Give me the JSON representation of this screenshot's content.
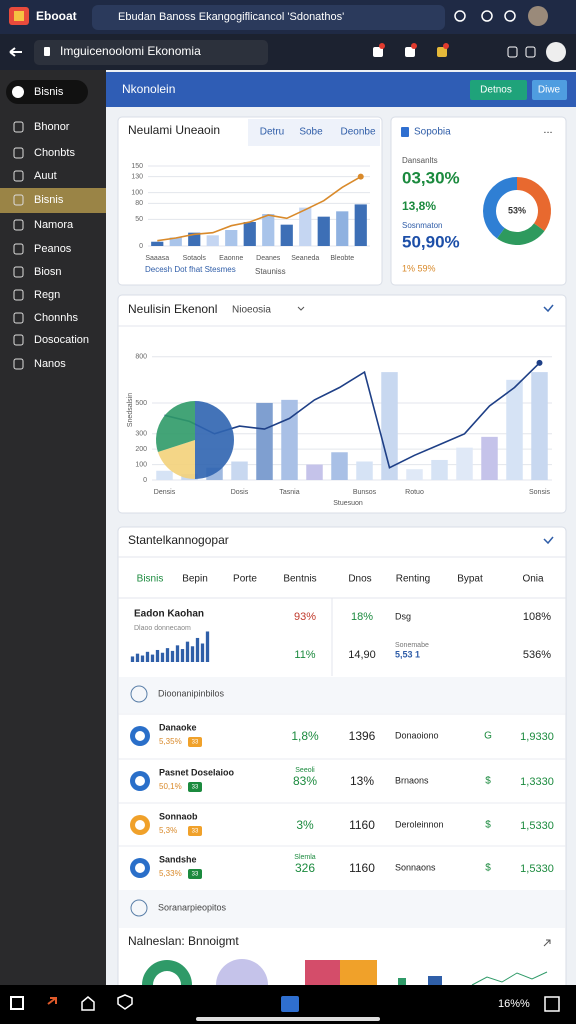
{
  "browser": {
    "app": "Ebooat",
    "tab": "Ebudan Banoss Ekangogiflicancol 'Sdonathos'",
    "address": "Imguicenoolomi Ekonomia"
  },
  "sidebar": {
    "top": "Bisnis",
    "items": [
      "Bhonor",
      "Chonbts",
      "Auut",
      "Bisnis",
      "Namora",
      "Peanos",
      "Biosn",
      "Regn",
      "Chonnhs",
      "Dosocation",
      "Nanos"
    ],
    "active": 3
  },
  "header": {
    "title": "Nkonolein",
    "buttons": [
      "Detnos",
      "Diwe"
    ]
  },
  "card1": {
    "tabs": [
      "Detru",
      "Sobe",
      "Deonbe"
    ]
  },
  "card2": {
    "title": "Sopobia",
    "menu": "...",
    "stats": [
      "Dansanlts",
      "03,30%",
      "13,8%",
      "Sosnmaton",
      "50,90%",
      "1% 59%"
    ]
  },
  "card3": {
    "subtitle": "Nioeosia"
  },
  "table": {
    "title": "Stantelkannogopar",
    "headers": [
      "Bisnis",
      "Bepin",
      "Porte",
      "Bentnis",
      "Dnos",
      "Renting",
      "Bypat",
      "Onia"
    ],
    "summary": {
      "rows": [
        [
          "93%",
          "18%",
          "Dsg",
          "108%"
        ],
        [
          "11%",
          "14,90",
          "5,53 1",
          "536%"
        ]
      ],
      "note": "Sonemabe"
    },
    "section": "Dioonanipinbilos",
    "rows": [
      {
        "name": "Danaoke",
        "sub": "5,35%",
        "badge": "33",
        "v1": "1,8%",
        "v2": "1396",
        "v3": "Donaoiono",
        "cur": "G",
        "v4": "1,9330"
      },
      {
        "name": "Pasnet Doselaioo",
        "sub": "50,1%",
        "badge": "33",
        "note": "Seeoli",
        "v1": "83%",
        "v2": "13%",
        "v3": "Brnaons",
        "cur": "$",
        "v4": "1,3330"
      },
      {
        "name": "Sonnaob",
        "sub": "5,3%",
        "badge": "33",
        "v1": "3%",
        "v2": "1160",
        "v3": "Deroleinnon",
        "cur": "$",
        "v4": "1,5330"
      },
      {
        "name": "Sandshe",
        "sub": "5,33%",
        "badge": "33",
        "note": "Slemla",
        "v1": "326",
        "v2": "1160",
        "v3": "Sonnaons",
        "cur": "$",
        "v4": "1,5330"
      }
    ],
    "footer": "Soranarpieopitos",
    "next": "Nalneslan: Bnnoigmt"
  },
  "taskbar": {
    "status": "16%%"
  },
  "chart_data": [
    {
      "type": "bar",
      "title": "Neulami Uneaoin",
      "categories": [
        "Saaasa",
        null,
        "Sotaols",
        null,
        "Eaonne",
        null,
        "Deanes",
        null,
        "Seaneda",
        null,
        "Bleobte",
        null
      ],
      "series": [
        {
          "colors": [
            "#3d6fb6",
            "#a9c4ea",
            "#3d6fb6",
            "#c5d6f2",
            "#a9c4ea",
            "#3d6fb6",
            "#a9c4ea",
            "#3d6fb6",
            "#c5d6f2",
            "#3d6fb6",
            "#8fb1e0",
            "#3d6fb6"
          ],
          "values": [
            8,
            16,
            25,
            20,
            30,
            45,
            60,
            40,
            72,
            55,
            65,
            78
          ]
        },
        {
          "type": "line",
          "color": "#d98a2b",
          "values": [
            10,
            15,
            22,
            25,
            38,
            45,
            58,
            52,
            68,
            85,
            110,
            130
          ]
        }
      ],
      "ylim": [
        0,
        150
      ],
      "yticks": [
        0,
        50,
        80,
        100,
        130,
        150
      ],
      "grid": true,
      "footnotes": [
        "Decesh Dot fhat Stesmes",
        "Stauniss"
      ]
    },
    {
      "type": "pie",
      "donut": true,
      "values": [
        35,
        25,
        40
      ],
      "colors": [
        "#e8692f",
        "#2e9a5e",
        "#2f7fd4"
      ],
      "center_label": "53%"
    },
    {
      "type": "bar",
      "title": "Neulisin Ekenonl",
      "categories": [
        "Densis",
        null,
        null,
        "Dosis",
        null,
        "Tasnia",
        null,
        null,
        "Bunsos",
        null,
        "Rotuo",
        null,
        null,
        null,
        null,
        "Sonsis"
      ],
      "series": [
        {
          "colors": [
            "#d6e3f5",
            "#c8d8f0",
            "#9fb9e0",
            "#c8d8f0",
            "#7f9fd0",
            "#a9c0e6",
            "#c5c3ea",
            "#a9c0e6",
            "#d6e3f5",
            "#c8d8f0",
            "#e0e9f7",
            "#d6e3f5",
            "#e0e9f7",
            "#c5c3ea",
            "#d6e3f5",
            "#c8d8f0"
          ],
          "values": [
            60,
            40,
            80,
            120,
            500,
            520,
            100,
            180,
            120,
            700,
            70,
            130,
            210,
            280,
            650,
            700
          ]
        },
        {
          "type": "line",
          "color": "#1e3f86",
          "values": [
            420,
            380,
            300,
            350,
            330,
            400,
            520,
            600,
            700,
            80,
            160,
            230,
            300,
            480,
            600,
            760
          ]
        }
      ],
      "ylim": [
        0,
        850
      ],
      "yticks": [
        0,
        100,
        200,
        300,
        500,
        800
      ],
      "grid": true,
      "xlabel": "Stuesuon",
      "ylabel": "Snedsalsin"
    },
    {
      "type": "pie",
      "values": [
        50,
        20,
        30
      ],
      "colors": [
        "#2f64b0",
        "#f3d27a",
        "#2f9a68"
      ]
    },
    {
      "type": "bar",
      "title": "Eadon Kaohan",
      "subtitle": "Dlaoo donnecaom",
      "categories": [
        null,
        null,
        null,
        null,
        null,
        null,
        null,
        null,
        null,
        null,
        null,
        null,
        null,
        null,
        null,
        null
      ],
      "series": [
        {
          "color": "#2f5fa8",
          "values": [
            6,
            9,
            7,
            11,
            8,
            13,
            10,
            15,
            12,
            18,
            14,
            22,
            17,
            26,
            20,
            33
          ]
        }
      ],
      "ylim": [
        0,
        40
      ]
    }
  ]
}
